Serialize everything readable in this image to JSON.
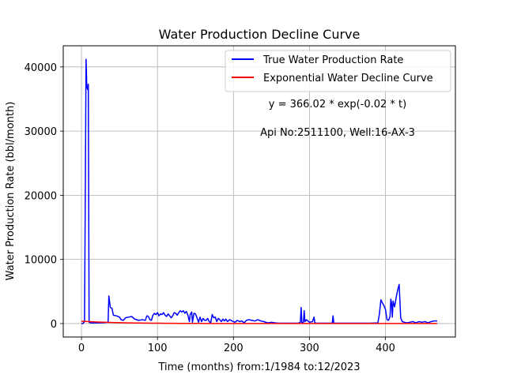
{
  "chart_data": {
    "type": "line",
    "title": "Water Production Decline Curve",
    "xlabel": "Time (months) from:1/1984 to:12/2023",
    "ylabel": "Water Production Rate (bbl/month)",
    "xlim": [
      -24,
      492
    ],
    "ylim": [
      -2100,
      43300
    ],
    "x_ticks": [
      0,
      100,
      200,
      300,
      400
    ],
    "y_ticks": [
      0,
      10000,
      20000,
      30000,
      40000
    ],
    "grid": true,
    "legend_position": "top-right",
    "annotations": [
      "y = 366.02 * exp(-0.02 * t)",
      "Api No:2511100, Well:16-AX-3"
    ],
    "series": [
      {
        "name": "True Water Production Rate",
        "color": "#0000ff",
        "points": [
          [
            0,
            0
          ],
          [
            2,
            0
          ],
          [
            4,
            300
          ],
          [
            5,
            20000
          ],
          [
            6,
            41200
          ],
          [
            7,
            37000
          ],
          [
            8,
            36500
          ],
          [
            9,
            37300
          ],
          [
            10,
            200
          ],
          [
            12,
            100
          ],
          [
            20,
            100
          ],
          [
            30,
            150
          ],
          [
            35,
            200
          ],
          [
            36,
            4300
          ],
          [
            38,
            2500
          ],
          [
            40,
            2400
          ],
          [
            42,
            1300
          ],
          [
            46,
            1200
          ],
          [
            50,
            1000
          ],
          [
            52,
            600
          ],
          [
            55,
            500
          ],
          [
            58,
            900
          ],
          [
            62,
            1000
          ],
          [
            66,
            1100
          ],
          [
            70,
            700
          ],
          [
            75,
            500
          ],
          [
            80,
            600
          ],
          [
            84,
            500
          ],
          [
            86,
            1200
          ],
          [
            88,
            1100
          ],
          [
            90,
            600
          ],
          [
            92,
            500
          ],
          [
            94,
            1300
          ],
          [
            96,
            1600
          ],
          [
            98,
            1400
          ],
          [
            100,
            1700
          ],
          [
            102,
            1200
          ],
          [
            104,
            1500
          ],
          [
            106,
            1400
          ],
          [
            108,
            1700
          ],
          [
            110,
            1300
          ],
          [
            112,
            1100
          ],
          [
            114,
            1500
          ],
          [
            116,
            1200
          ],
          [
            118,
            900
          ],
          [
            120,
            1200
          ],
          [
            122,
            1700
          ],
          [
            124,
            1600
          ],
          [
            126,
            1300
          ],
          [
            128,
            1700
          ],
          [
            130,
            2000
          ],
          [
            132,
            1800
          ],
          [
            134,
            2000
          ],
          [
            136,
            1600
          ],
          [
            138,
            1900
          ],
          [
            140,
            1300
          ],
          [
            142,
            300
          ],
          [
            143,
            1400
          ],
          [
            145,
            1800
          ],
          [
            146,
            200
          ],
          [
            148,
            1600
          ],
          [
            150,
            1500
          ],
          [
            152,
            900
          ],
          [
            154,
            200
          ],
          [
            156,
            1000
          ],
          [
            158,
            300
          ],
          [
            160,
            800
          ],
          [
            162,
            500
          ],
          [
            164,
            500
          ],
          [
            166,
            800
          ],
          [
            168,
            300
          ],
          [
            170,
            100
          ],
          [
            172,
            1400
          ],
          [
            174,
            900
          ],
          [
            176,
            1000
          ],
          [
            178,
            300
          ],
          [
            180,
            800
          ],
          [
            182,
            600
          ],
          [
            184,
            300
          ],
          [
            186,
            700
          ],
          [
            188,
            400
          ],
          [
            190,
            700
          ],
          [
            192,
            300
          ],
          [
            195,
            600
          ],
          [
            198,
            400
          ],
          [
            202,
            200
          ],
          [
            205,
            500
          ],
          [
            208,
            300
          ],
          [
            211,
            400
          ],
          [
            214,
            100
          ],
          [
            217,
            500
          ],
          [
            220,
            600
          ],
          [
            224,
            500
          ],
          [
            228,
            400
          ],
          [
            232,
            600
          ],
          [
            236,
            400
          ],
          [
            240,
            300
          ],
          [
            245,
            100
          ],
          [
            250,
            200
          ],
          [
            255,
            100
          ],
          [
            260,
            50
          ],
          [
            265,
            50
          ],
          [
            270,
            50
          ],
          [
            275,
            50
          ],
          [
            280,
            50
          ],
          [
            285,
            50
          ],
          [
            288,
            200
          ],
          [
            289,
            2500
          ],
          [
            290,
            100
          ],
          [
            292,
            200
          ],
          [
            293,
            2000
          ],
          [
            294,
            300
          ],
          [
            296,
            600
          ],
          [
            300,
            200
          ],
          [
            304,
            300
          ],
          [
            306,
            1000
          ],
          [
            307,
            100
          ],
          [
            310,
            50
          ],
          [
            320,
            50
          ],
          [
            330,
            50
          ],
          [
            331,
            1200
          ],
          [
            332,
            50
          ],
          [
            340,
            50
          ],
          [
            350,
            50
          ],
          [
            360,
            50
          ],
          [
            370,
            50
          ],
          [
            380,
            50
          ],
          [
            390,
            100
          ],
          [
            392,
            1500
          ],
          [
            394,
            3700
          ],
          [
            396,
            3200
          ],
          [
            398,
            2800
          ],
          [
            400,
            2200
          ],
          [
            402,
            600
          ],
          [
            404,
            500
          ],
          [
            406,
            1100
          ],
          [
            407,
            3800
          ],
          [
            408,
            3200
          ],
          [
            409,
            1000
          ],
          [
            410,
            3500
          ],
          [
            412,
            2600
          ],
          [
            414,
            4000
          ],
          [
            416,
            5200
          ],
          [
            418,
            6100
          ],
          [
            420,
            900
          ],
          [
            422,
            300
          ],
          [
            425,
            200
          ],
          [
            428,
            100
          ],
          [
            432,
            200
          ],
          [
            436,
            300
          ],
          [
            440,
            100
          ],
          [
            444,
            300
          ],
          [
            448,
            200
          ],
          [
            452,
            300
          ],
          [
            456,
            100
          ],
          [
            460,
            300
          ],
          [
            464,
            400
          ],
          [
            468,
            400
          ]
        ]
      },
      {
        "name": "Exponential Water Decline Curve",
        "color": "#ff0000",
        "formula": {
          "a": 366.02,
          "b": -0.02
        },
        "x_range": [
          0,
          468
        ]
      }
    ]
  }
}
